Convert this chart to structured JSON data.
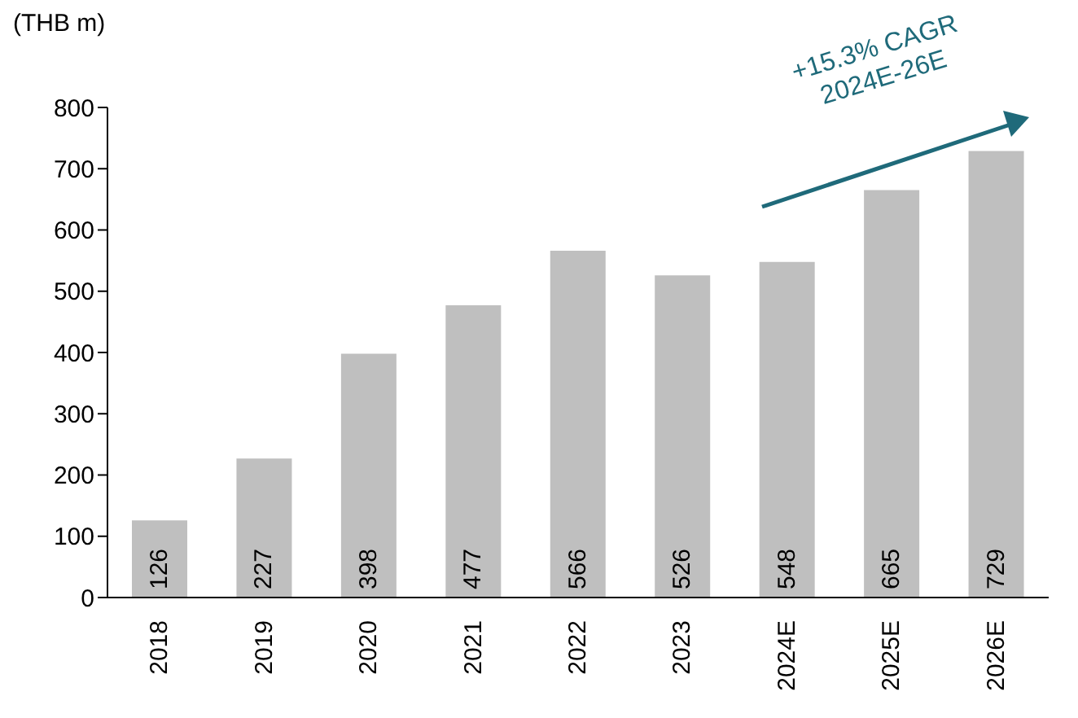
{
  "chart_data": {
    "type": "bar",
    "ylabel": "(THB m)",
    "categories": [
      "2018",
      "2019",
      "2020",
      "2021",
      "2022",
      "2023",
      "2024E",
      "2025E",
      "2026E"
    ],
    "values": [
      126,
      227,
      398,
      477,
      566,
      526,
      548,
      665,
      729
    ],
    "color": "#bfbfbf",
    "ylim": [
      0,
      800
    ],
    "yticks": [
      0,
      100,
      200,
      300,
      400,
      500,
      600,
      700,
      800
    ],
    "grid": false,
    "data_labels": true,
    "annotations": [
      "+15.3% CAGR\n2024E-26E"
    ]
  }
}
